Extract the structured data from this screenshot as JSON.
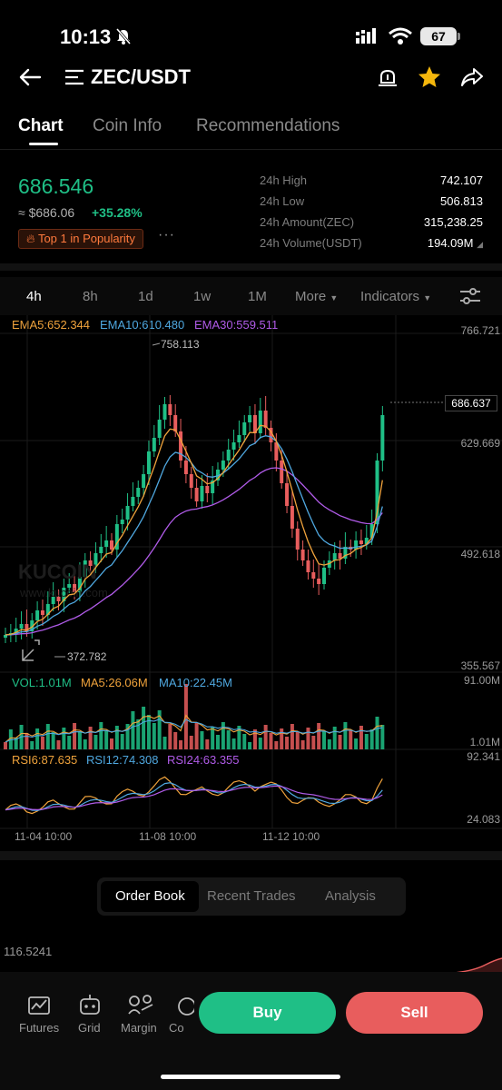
{
  "status_bar": {
    "time": "10:13",
    "battery": "67"
  },
  "header": {
    "title": "ZEC/USDT"
  },
  "tabs": [
    "Chart",
    "Coin Info",
    "Recommendations"
  ],
  "ticker": {
    "price": "686.546",
    "price_usd": "≈ $686.06",
    "change": "+35.28%",
    "badge": "Top 1 in Popularity",
    "more": "···",
    "stats": [
      {
        "label": "24h High",
        "value": "742.107"
      },
      {
        "label": "24h Low",
        "value": "506.813"
      },
      {
        "label": "24h Amount(ZEC)",
        "value": "315,238.25"
      },
      {
        "label": "24h Volume(USDT)",
        "value": "194.09M"
      }
    ]
  },
  "timeframes": {
    "items": [
      "4h",
      "8h",
      "1d",
      "1w",
      "1M"
    ],
    "selected": "4h",
    "more": "More",
    "indicators": "Indicators"
  },
  "chart_data": {
    "type": "candlestick",
    "indicators": {
      "ema5": "EMA5:652.344",
      "ema10": "EMA10:610.480",
      "ema30": "EMA30:559.511"
    },
    "y_axis_ticks": [
      "766.721",
      "629.669",
      "492.618",
      "355.567"
    ],
    "last_price": "686.637",
    "high_marker": "758.113",
    "low_marker": "372.782",
    "watermark": "KUCOIN",
    "watermark_url": "www.kucoin.com",
    "volume": {
      "label": "VOL:1.01M",
      "ma5": "MA5:26.06M",
      "ma10": "MA10:22.45M",
      "max": "91.00M",
      "min": "1.01M"
    },
    "rsi": {
      "rsi6": "RSI6:87.635",
      "rsi12": "RSI12:74.308",
      "rsi24": "RSI24:63.355",
      "max": "92.341",
      "min": "24.083"
    },
    "x_axis_labels": [
      "11-04 10:00",
      "11-08 10:00",
      "11-12 10:00"
    ],
    "colors": {
      "up": "#1fbf86",
      "down": "#e85d5d",
      "ema5": "#f0a33c",
      "ema10": "#4fa8e0",
      "ema30": "#b05be8"
    }
  },
  "orderbook": {
    "tabs": [
      "Order Book",
      "Recent Trades",
      "Analysis"
    ],
    "selected": "Order Book",
    "depth_value": "116.5241"
  },
  "bottom_nav": {
    "items": [
      "Futures",
      "Grid",
      "Margin",
      "Co"
    ],
    "buy": "Buy",
    "sell": "Sell"
  }
}
